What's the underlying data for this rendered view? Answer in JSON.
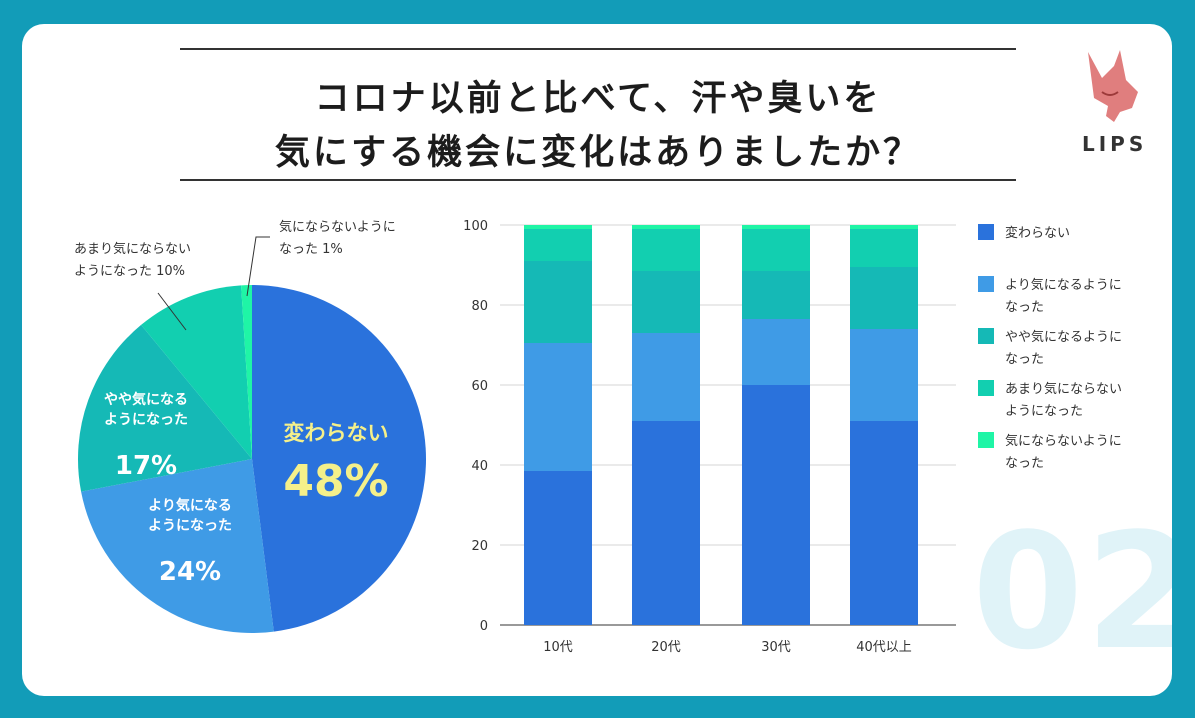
{
  "header": {
    "title_line1": "コロナ以前と比べて、汗や臭いを",
    "title_line2": "気にする機会に変化はありましたか？"
  },
  "logo": {
    "text": "LIPS"
  },
  "watermark": {
    "text": "02"
  },
  "colors": {
    "background": "#129cb8",
    "series": [
      "#2a72dc",
      "#3f9be6",
      "#15b9b6",
      "#12cfb0",
      "#1ff5a6"
    ]
  },
  "chart_data": [
    {
      "type": "pie",
      "title": "",
      "slices": [
        {
          "label": "変わらない",
          "value": 48,
          "label_display": "48%",
          "label_lines": [
            "変わらない"
          ]
        },
        {
          "label": "より気になるようになった",
          "value": 24,
          "label_display": "24%",
          "label_lines": [
            "より気になる",
            "ようになった"
          ]
        },
        {
          "label": "やや気になるようになった",
          "value": 17,
          "label_display": "17%",
          "label_lines": [
            "やや気になる",
            "ようになった"
          ]
        },
        {
          "label": "あまり気にならないようになった",
          "value": 10,
          "label_lines": [
            "あまり気にならない",
            "ようになった 10%"
          ]
        },
        {
          "label": "気にならないようになった",
          "value": 1,
          "label_lines": [
            "気にならないように",
            "なった 1%"
          ]
        }
      ]
    },
    {
      "type": "bar",
      "stacked": true,
      "categories": [
        "10代",
        "20代",
        "30代",
        "40代以上"
      ],
      "ylim": [
        0,
        100
      ],
      "yticks": [
        0,
        20,
        40,
        60,
        80,
        100
      ],
      "legend_position": "right",
      "series": [
        {
          "name": "変わらない",
          "legend_lines": [
            "変わらない"
          ],
          "values": [
            38.5,
            51,
            60,
            51
          ]
        },
        {
          "name": "より気になるようになった",
          "legend_lines": [
            "より気になるように",
            "なった"
          ],
          "values": [
            32,
            22,
            16.5,
            23
          ]
        },
        {
          "name": "やや気になるようになった",
          "legend_lines": [
            "やや気になるように",
            "なった"
          ],
          "values": [
            20.5,
            15.5,
            12,
            15.5
          ]
        },
        {
          "name": "あまり気にならないようになった",
          "legend_lines": [
            "あまり気にならない",
            "ようになった"
          ],
          "values": [
            8,
            10.5,
            10.5,
            9.5
          ]
        },
        {
          "name": "気にならないようになった",
          "legend_lines": [
            "気にならないように",
            "なった"
          ],
          "values": [
            1,
            1,
            1,
            1
          ]
        }
      ]
    }
  ]
}
